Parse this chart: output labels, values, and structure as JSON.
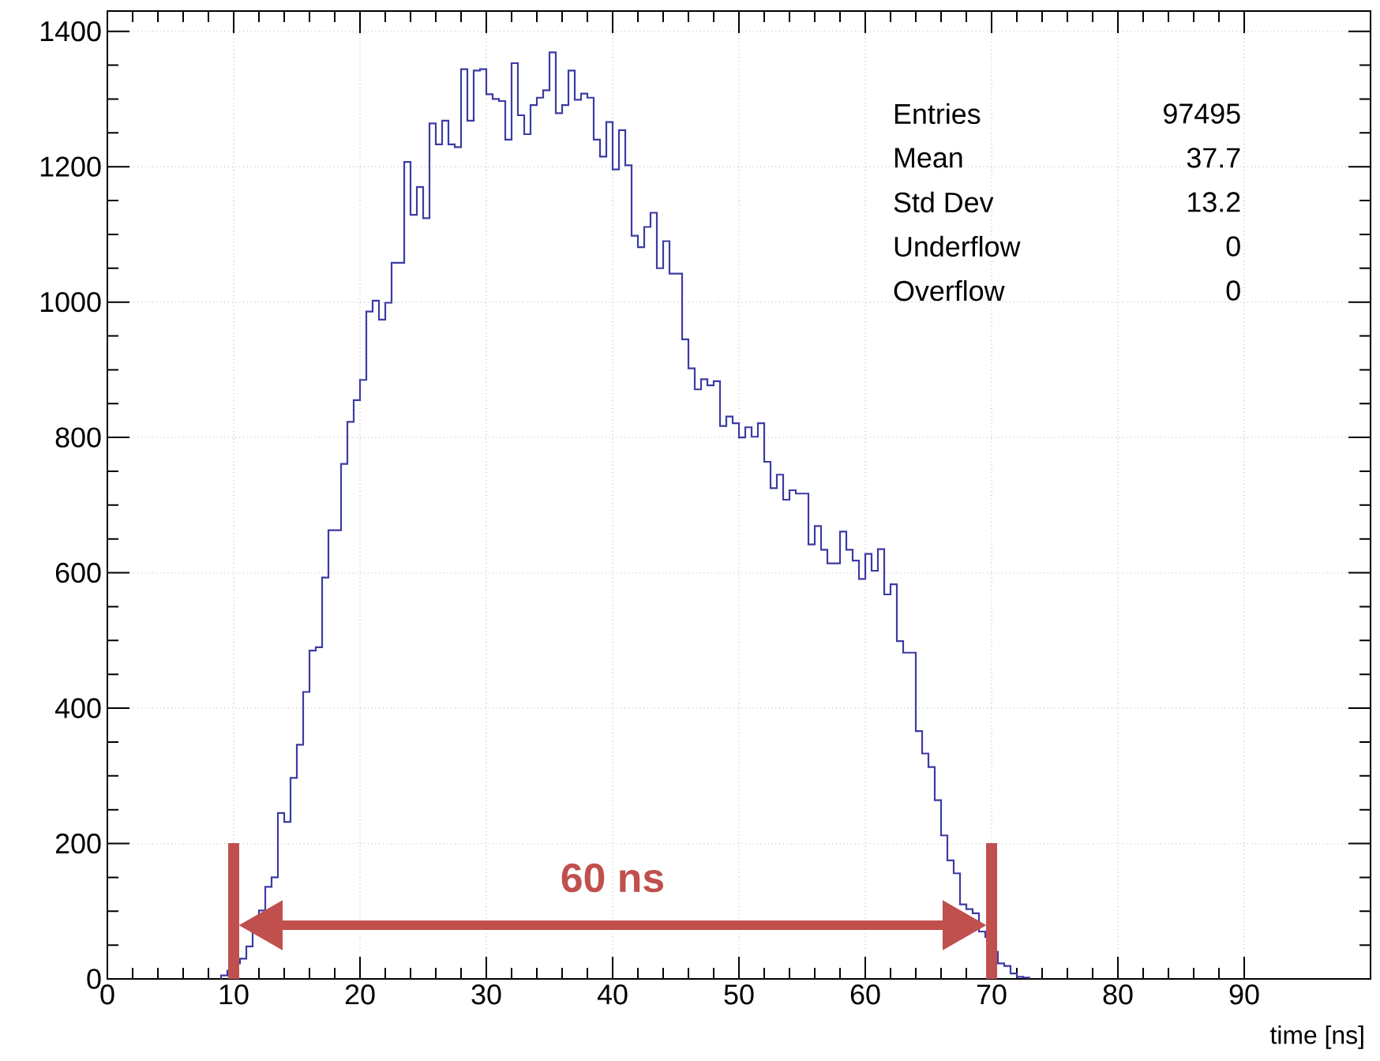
{
  "chart_data": {
    "type": "histogram",
    "bins": [
      9,
      9.5,
      10,
      10.5,
      11,
      11.5,
      12,
      12.5,
      13,
      13.5,
      14,
      14.5,
      15,
      15.5,
      16,
      16.5,
      17,
      17.5,
      18,
      18.5,
      19,
      19.5,
      20,
      20.5,
      21,
      21.5,
      22,
      22.5,
      23,
      23.5,
      24,
      24.5,
      25,
      25.5,
      26,
      26.5,
      27,
      27.5,
      28,
      28.5,
      29,
      29.5,
      30,
      30.5,
      31,
      31.5,
      32,
      32.5,
      33,
      33.5,
      34,
      34.5,
      35,
      35.5,
      36,
      36.5,
      37,
      37.5,
      38,
      38.5,
      39,
      39.5,
      40,
      40.5,
      41,
      41.5,
      42,
      42.5,
      43,
      43.5,
      44,
      44.5,
      45,
      45.5,
      46,
      46.5,
      47,
      47.5,
      48,
      48.5,
      49,
      49.5,
      50,
      50.5,
      51,
      51.5,
      52,
      52.5,
      53,
      53.5,
      54,
      54.5,
      55,
      55.5,
      56,
      56.5,
      57,
      57.5,
      58,
      58.5,
      59,
      59.5,
      60,
      60.5,
      61,
      61.5,
      62,
      62.5,
      63,
      63.5,
      64,
      64.5,
      65,
      65.5,
      66,
      66.5,
      67,
      67.5,
      68,
      68.5,
      69,
      69.5,
      70,
      70.5,
      71,
      71.5,
      72,
      72.5,
      73
    ],
    "values": [
      5,
      12,
      23,
      30,
      48,
      86,
      101,
      136,
      150,
      245,
      232,
      297,
      346,
      424,
      485,
      490,
      593,
      663,
      663,
      761,
      823,
      855,
      885,
      986,
      1002,
      974,
      999,
      1058,
      1058,
      1207,
      1129,
      1170,
      1124,
      1264,
      1233,
      1268,
      1233,
      1229,
      1344,
      1268,
      1342,
      1344,
      1307,
      1300,
      1297,
      1240,
      1353,
      1276,
      1248,
      1291,
      1302,
      1313,
      1369,
      1279,
      1291,
      1342,
      1299,
      1308,
      1302,
      1240,
      1215,
      1266,
      1196,
      1254,
      1202,
      1098,
      1081,
      1111,
      1132,
      1050,
      1090,
      1042,
      1042,
      945,
      902,
      871,
      886,
      877,
      883,
      817,
      831,
      821,
      800,
      815,
      801,
      821,
      764,
      725,
      745,
      708,
      722,
      717,
      717,
      642,
      669,
      634,
      614,
      614,
      661,
      634,
      618,
      591,
      628,
      603,
      635,
      568,
      583,
      499,
      482,
      482,
      366,
      333,
      313,
      264,
      212,
      175,
      156,
      110,
      103,
      97,
      70,
      62,
      40,
      23,
      19,
      8,
      3,
      2
    ],
    "color": "#3b3ba3",
    "xlabel": "time [ns]",
    "xlim": [
      0,
      100
    ],
    "xticks": [
      0,
      10,
      20,
      30,
      40,
      50,
      60,
      70,
      80,
      90
    ],
    "ylim": [
      0,
      1430
    ],
    "yticks": [
      0,
      200,
      400,
      600,
      800,
      1000,
      1200,
      1400
    ],
    "grid": true,
    "annotations": [
      "Entries",
      "97495",
      "Mean",
      "37.7",
      "Std Dev",
      "13.2",
      "Underflow",
      "0",
      "Overflow",
      "0",
      "60 ns"
    ],
    "ref_lines": [
      {
        "axis": "x",
        "value": 10,
        "color": "#c0504d"
      },
      {
        "axis": "x",
        "value": 70,
        "color": "#c0504d"
      }
    ]
  }
}
